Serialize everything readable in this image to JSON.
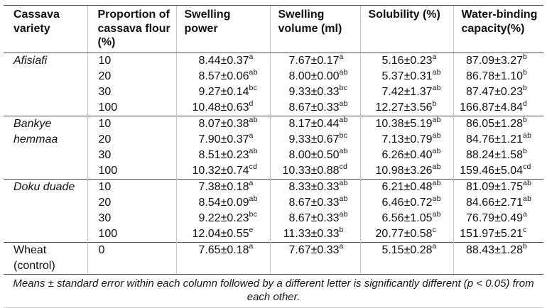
{
  "table": {
    "columns": [
      {
        "label": "Cassava variety"
      },
      {
        "label": "Proportion of cassava flour (%)"
      },
      {
        "label": "Swelling power"
      },
      {
        "label": "Swelling volume (ml)"
      },
      {
        "label": "Solubility (%)"
      },
      {
        "label": "Water-binding capacity(%)"
      }
    ],
    "rows": [
      {
        "variety": "Afisiafi",
        "italic": true,
        "rowspan": 4,
        "group_start": true,
        "proportion": "10",
        "values": [
          {
            "v": "8.44±0.37",
            "s": "a"
          },
          {
            "v": "7.67±0.17",
            "s": "a"
          },
          {
            "v": "5.16±0.23",
            "s": "a"
          },
          {
            "v": "87.09±3.27",
            "s": "b"
          }
        ]
      },
      {
        "proportion": "20",
        "values": [
          {
            "v": "8.57±0.06",
            "s": "ab"
          },
          {
            "v": "8.00±0.00",
            "s": "ab"
          },
          {
            "v": "5.37±0.31",
            "s": "ab"
          },
          {
            "v": "86.78±1.10",
            "s": "b"
          }
        ]
      },
      {
        "proportion": "30",
        "values": [
          {
            "v": "9.27±0.14",
            "s": "bc"
          },
          {
            "v": "9.33±0.33",
            "s": "bc"
          },
          {
            "v": "7.42±1.37",
            "s": "ab"
          },
          {
            "v": "87.47±0.23",
            "s": "b"
          }
        ]
      },
      {
        "proportion": "100",
        "values": [
          {
            "v": "10.48±0.63",
            "s": "d"
          },
          {
            "v": "8.67±0.33",
            "s": "ab"
          },
          {
            "v": "12.27±3.56",
            "s": "b"
          },
          {
            "v": "166.87±4.84",
            "s": "d"
          }
        ]
      },
      {
        "variety": "Bankye hemmaa",
        "italic": true,
        "rowspan": 4,
        "group_start": true,
        "proportion": "10",
        "values": [
          {
            "v": "8.07±0.38",
            "s": "ab"
          },
          {
            "v": "8.17±0.44",
            "s": "ab"
          },
          {
            "v": "10.38±5.19",
            "s": "ab"
          },
          {
            "v": "86.05±1.28",
            "s": "b"
          }
        ]
      },
      {
        "proportion": "20",
        "values": [
          {
            "v": "7.90±0.37",
            "s": "a"
          },
          {
            "v": "9.33±0.67",
            "s": "bc"
          },
          {
            "v": "7.13±0.79",
            "s": "ab"
          },
          {
            "v": "84.76±1.21",
            "s": "ab"
          }
        ]
      },
      {
        "proportion": "30",
        "values": [
          {
            "v": "8.51±0.23",
            "s": "ab"
          },
          {
            "v": "8.00±0.50",
            "s": "ab"
          },
          {
            "v": "6.26±0.40",
            "s": "ab"
          },
          {
            "v": "88.24±1.58",
            "s": "b"
          }
        ]
      },
      {
        "proportion": "100",
        "values": [
          {
            "v": "10.32±0.74",
            "s": "cd"
          },
          {
            "v": "10.33±0.88",
            "s": "cd"
          },
          {
            "v": "10.98±3.26",
            "s": "ab"
          },
          {
            "v": "159.46±5.04",
            "s": "cd"
          }
        ]
      },
      {
        "variety": "Doku duade",
        "italic": true,
        "rowspan": 4,
        "group_start": true,
        "proportion": "10",
        "values": [
          {
            "v": "7.38±0.18",
            "s": "a"
          },
          {
            "v": "8.33±0.33",
            "s": "ab"
          },
          {
            "v": "6.21±0.48",
            "s": "ab"
          },
          {
            "v": "81.09±1.75",
            "s": "ab"
          }
        ]
      },
      {
        "proportion": "20",
        "values": [
          {
            "v": "8.54±0.09",
            "s": "ab"
          },
          {
            "v": "8.67±0.33",
            "s": "ab"
          },
          {
            "v": "6.46±0.72",
            "s": "ab"
          },
          {
            "v": "84.66±2.71",
            "s": "ab"
          }
        ]
      },
      {
        "proportion": "30",
        "values": [
          {
            "v": "9.22±0.23",
            "s": "bc"
          },
          {
            "v": "8.67±0.33",
            "s": "ab"
          },
          {
            "v": "6.56±1.05",
            "s": "ab"
          },
          {
            "v": "76.79±0.49",
            "s": "a"
          }
        ]
      },
      {
        "proportion": "100",
        "values": [
          {
            "v": "12.04±0.55",
            "s": "e"
          },
          {
            "v": "11.33±0.33",
            "s": "b"
          },
          {
            "v": "20.77±0.58",
            "s": "c"
          },
          {
            "v": "151.97±5.21",
            "s": "c"
          }
        ]
      },
      {
        "variety": "Wheat (control)",
        "italic": false,
        "rowspan": 1,
        "group_start": true,
        "proportion": "0",
        "values": [
          {
            "v": "7.65±0.18",
            "s": "a"
          },
          {
            "v": "7.67±0.33",
            "s": "a"
          },
          {
            "v": "5.15±0.28",
            "s": "a"
          },
          {
            "v": "88.43±1.28",
            "s": "b"
          }
        ]
      }
    ],
    "footnote": "Means ± standard error within each column followed by a different letter is significantly different (p < 0.05) from each other."
  }
}
